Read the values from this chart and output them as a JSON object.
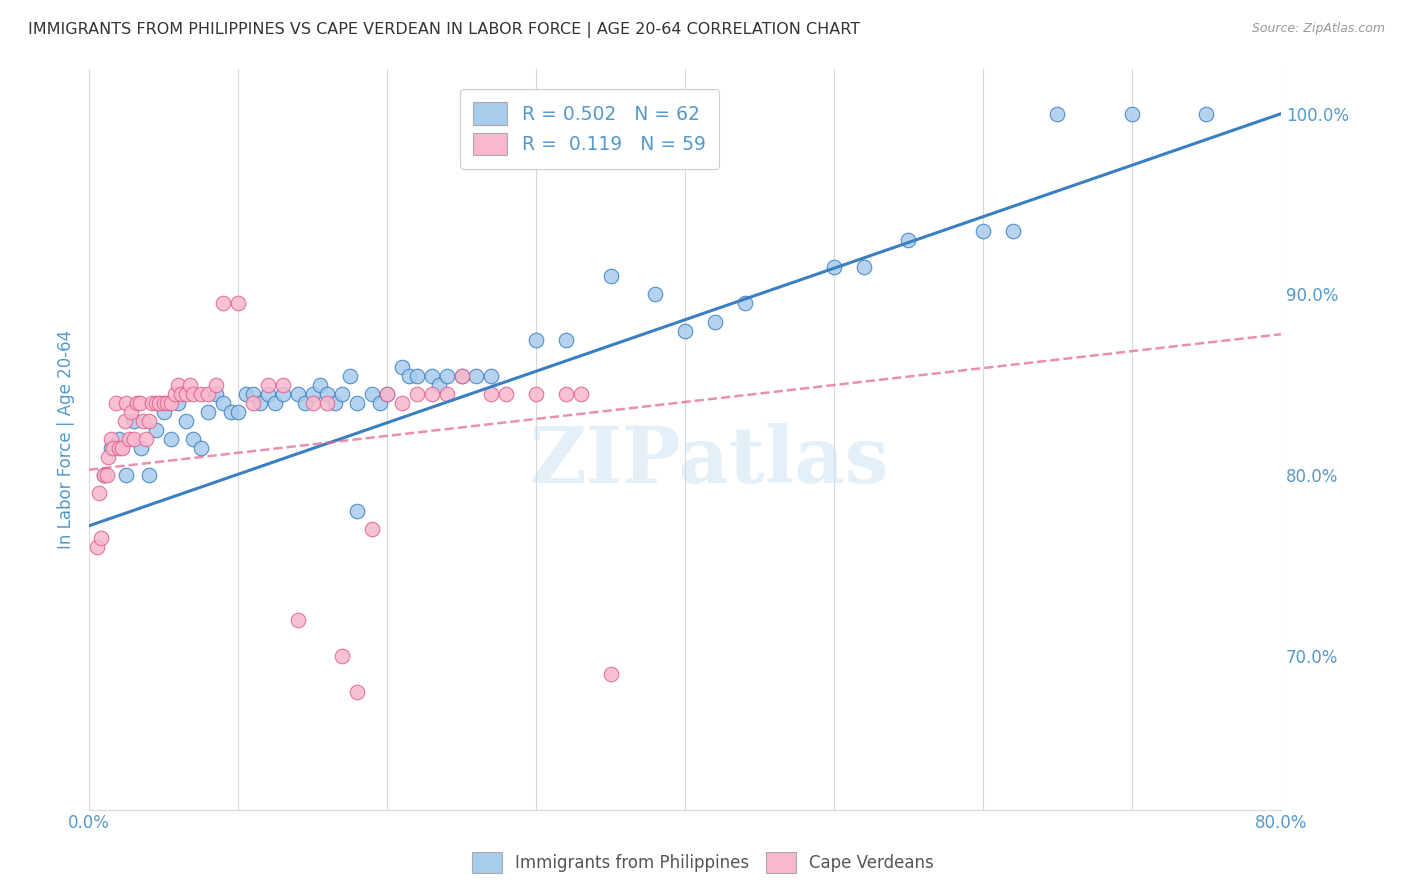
{
  "title": "IMMIGRANTS FROM PHILIPPINES VS CAPE VERDEAN IN LABOR FORCE | AGE 20-64 CORRELATION CHART",
  "source": "Source: ZipAtlas.com",
  "ylabel": "In Labor Force | Age 20-64",
  "legend1_label": "R = 0.502   N = 62",
  "legend2_label": "R =  0.119   N = 59",
  "watermark": "ZIPatlas",
  "blue_scatter_x": [
    0.01,
    0.015,
    0.02,
    0.025,
    0.03,
    0.035,
    0.04,
    0.045,
    0.05,
    0.055,
    0.06,
    0.065,
    0.07,
    0.075,
    0.08,
    0.085,
    0.09,
    0.095,
    0.1,
    0.105,
    0.11,
    0.115,
    0.12,
    0.125,
    0.13,
    0.14,
    0.145,
    0.15,
    0.155,
    0.16,
    0.165,
    0.17,
    0.175,
    0.18,
    0.19,
    0.195,
    0.2,
    0.21,
    0.215,
    0.22,
    0.23,
    0.235,
    0.24,
    0.25,
    0.26,
    0.27,
    0.3,
    0.32,
    0.35,
    0.38,
    0.4,
    0.42,
    0.44,
    0.5,
    0.52,
    0.55,
    0.6,
    0.62,
    0.65,
    0.7,
    0.75,
    0.18
  ],
  "blue_scatter_y": [
    0.8,
    0.815,
    0.82,
    0.8,
    0.83,
    0.815,
    0.8,
    0.825,
    0.835,
    0.82,
    0.84,
    0.83,
    0.82,
    0.815,
    0.835,
    0.845,
    0.84,
    0.835,
    0.835,
    0.845,
    0.845,
    0.84,
    0.845,
    0.84,
    0.845,
    0.845,
    0.84,
    0.845,
    0.85,
    0.845,
    0.84,
    0.845,
    0.855,
    0.84,
    0.845,
    0.84,
    0.845,
    0.86,
    0.855,
    0.855,
    0.855,
    0.85,
    0.855,
    0.855,
    0.855,
    0.855,
    0.875,
    0.875,
    0.91,
    0.9,
    0.88,
    0.885,
    0.895,
    0.915,
    0.915,
    0.93,
    0.935,
    0.935,
    1.0,
    1.0,
    1.0,
    0.78
  ],
  "pink_scatter_x": [
    0.005,
    0.007,
    0.008,
    0.01,
    0.012,
    0.013,
    0.015,
    0.016,
    0.018,
    0.02,
    0.022,
    0.024,
    0.025,
    0.027,
    0.028,
    0.03,
    0.032,
    0.034,
    0.036,
    0.038,
    0.04,
    0.042,
    0.045,
    0.047,
    0.05,
    0.052,
    0.055,
    0.058,
    0.06,
    0.062,
    0.065,
    0.068,
    0.07,
    0.075,
    0.08,
    0.085,
    0.09,
    0.1,
    0.11,
    0.12,
    0.13,
    0.14,
    0.15,
    0.16,
    0.17,
    0.18,
    0.19,
    0.2,
    0.21,
    0.22,
    0.23,
    0.24,
    0.25,
    0.27,
    0.28,
    0.3,
    0.32,
    0.33,
    0.35
  ],
  "pink_scatter_y": [
    0.76,
    0.79,
    0.765,
    0.8,
    0.8,
    0.81,
    0.82,
    0.815,
    0.84,
    0.815,
    0.815,
    0.83,
    0.84,
    0.82,
    0.835,
    0.82,
    0.84,
    0.84,
    0.83,
    0.82,
    0.83,
    0.84,
    0.84,
    0.84,
    0.84,
    0.84,
    0.84,
    0.845,
    0.85,
    0.845,
    0.845,
    0.85,
    0.845,
    0.845,
    0.845,
    0.85,
    0.895,
    0.895,
    0.84,
    0.85,
    0.85,
    0.72,
    0.84,
    0.84,
    0.7,
    0.68,
    0.77,
    0.845,
    0.84,
    0.845,
    0.845,
    0.845,
    0.855,
    0.845,
    0.845,
    0.845,
    0.845,
    0.845,
    0.69
  ],
  "blue_line_x": [
    0.0,
    0.8
  ],
  "blue_line_y": [
    0.772,
    1.0
  ],
  "pink_line_x": [
    0.0,
    0.8
  ],
  "pink_line_y": [
    0.803,
    0.878
  ],
  "xlim": [
    0.0,
    0.8
  ],
  "ylim": [
    0.615,
    1.025
  ],
  "x_tick_positions": [
    0.0,
    0.1,
    0.2,
    0.3,
    0.4,
    0.5,
    0.6,
    0.7,
    0.8
  ],
  "y_tick_positions": [
    0.7,
    0.8,
    0.9,
    1.0
  ],
  "grid_color": "#d8d8d8",
  "blue_color": "#a8ccec",
  "pink_color": "#f9b8cc",
  "blue_line_color": "#3a7fc1",
  "pink_line_color": "#e06090",
  "title_color": "#333333",
  "axis_label_color": "#5599cc",
  "source_color": "#999999",
  "background_color": "#ffffff"
}
